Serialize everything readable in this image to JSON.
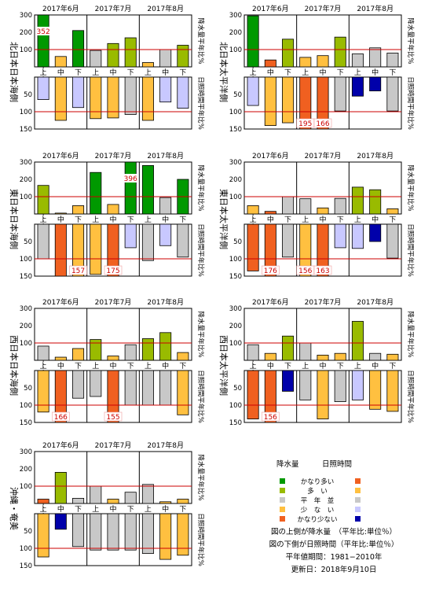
{
  "months": [
    "2017年6月",
    "2017年7月",
    "2017年8月"
  ],
  "dekads": [
    "上",
    "中",
    "下"
  ],
  "colors": {
    "much_above": "#009900",
    "above": "#99bb00",
    "normal": "#c8c8c8",
    "below": "#ffc040",
    "much_below": "#f06020",
    "sun_much_above": "#f06020",
    "sun_above": "#ffc040",
    "sun_below": "#c8c8ff",
    "sun_much_below": "#0000aa"
  },
  "chart_data": [
    {
      "type": "bar",
      "region": "北日本日本海側",
      "precip_axis_label": "降水量平年比%",
      "sunshine_axis_label": "日照時間平年比%",
      "precip": [
        352,
        60,
        210,
        95,
        135,
        168,
        25,
        100,
        125
      ],
      "precip_class": [
        "much_above",
        "below",
        "much_above",
        "normal",
        "above",
        "above",
        "below",
        "normal",
        "above"
      ],
      "precip_labels": [
        "352"
      ],
      "sunshine": [
        65,
        125,
        88,
        120,
        118,
        108,
        125,
        72,
        90
      ],
      "sunshine_class": [
        "sun_below",
        "sun_above",
        "sun_below",
        "sun_above",
        "sun_above",
        "normal",
        "sun_above",
        "sun_below",
        "sun_below"
      ],
      "sunshine_labels": []
    },
    {
      "type": "bar",
      "region": "北日本太平洋側",
      "precip_axis_label": "降水量平年比%",
      "sunshine_axis_label": "日照時間平年比%",
      "precip": [
        295,
        40,
        160,
        55,
        65,
        172,
        75,
        110,
        80
      ],
      "precip_class": [
        "much_above",
        "much_below",
        "above",
        "below",
        "below",
        "above",
        "normal",
        "normal",
        "normal"
      ],
      "precip_labels": [],
      "sunshine": [
        82,
        140,
        132,
        195,
        166,
        98,
        55,
        40,
        98
      ],
      "sunshine_class": [
        "sun_below",
        "sun_above",
        "sun_above",
        "sun_much_above",
        "sun_much_above",
        "normal",
        "sun_much_below",
        "sun_much_below",
        "normal"
      ],
      "sunshine_labels": [
        "195",
        "166"
      ]
    },
    {
      "type": "bar",
      "region": "東日本日本海側",
      "precip_axis_label": "降水量平年比%",
      "sunshine_axis_label": "日照時間平年比%",
      "precip": [
        165,
        5,
        48,
        240,
        55,
        396,
        280,
        95,
        200
      ],
      "precip_class": [
        "above",
        "below",
        "below",
        "much_above",
        "below",
        "much_above",
        "much_above",
        "normal",
        "much_above"
      ],
      "precip_labels": [
        "396"
      ],
      "sunshine": [
        100,
        150,
        157,
        145,
        175,
        68,
        105,
        62,
        95
      ],
      "sunshine_class": [
        "normal",
        "sun_much_above",
        "sun_above",
        "sun_above",
        "sun_much_above",
        "sun_below",
        "normal",
        "sun_below",
        "normal"
      ],
      "sunshine_labels": [
        "157",
        "175"
      ]
    },
    {
      "type": "bar",
      "region": "東日本太平洋側",
      "precip_axis_label": "降水量平年比%",
      "sunshine_axis_label": "日照時間平年比%",
      "precip": [
        48,
        15,
        100,
        88,
        35,
        90,
        155,
        140,
        30
      ],
      "precip_class": [
        "below",
        "much_below",
        "normal",
        "normal",
        "below",
        "normal",
        "above",
        "above",
        "below"
      ],
      "precip_labels": [],
      "sunshine": [
        135,
        176,
        95,
        156,
        163,
        68,
        70,
        50,
        98
      ],
      "sunshine_class": [
        "sun_much_above",
        "sun_much_above",
        "normal",
        "sun_above",
        "sun_much_above",
        "sun_below",
        "sun_below",
        "sun_much_below",
        "normal"
      ],
      "sunshine_labels": [
        "176",
        "156",
        "163"
      ]
    },
    {
      "type": "bar",
      "region": "西日本日本海側",
      "precip_axis_label": "降水量平年比%",
      "sunshine_axis_label": "日照時間平年比%",
      "precip": [
        82,
        18,
        68,
        120,
        25,
        90,
        125,
        160,
        45
      ],
      "precip_class": [
        "normal",
        "below",
        "below",
        "above",
        "below",
        "normal",
        "above",
        "above",
        "below"
      ],
      "precip_labels": [],
      "sunshine": [
        120,
        166,
        80,
        75,
        155,
        100,
        100,
        100,
        128
      ],
      "sunshine_class": [
        "sun_above",
        "sun_much_above",
        "normal",
        "normal",
        "sun_much_above",
        "normal",
        "normal",
        "normal",
        "sun_above"
      ],
      "sunshine_labels": [
        "166",
        "155"
      ]
    },
    {
      "type": "bar",
      "region": "西日本太平洋側",
      "precip_axis_label": "降水量平年比%",
      "sunshine_axis_label": "日照時間平年比%",
      "precip": [
        90,
        40,
        140,
        100,
        30,
        40,
        225,
        40,
        35
      ],
      "precip_class": [
        "normal",
        "below",
        "above",
        "normal",
        "below",
        "below",
        "above",
        "normal",
        "below"
      ],
      "precip_labels": [],
      "sunshine": [
        140,
        156,
        60,
        85,
        140,
        90,
        85,
        112,
        118
      ],
      "sunshine_class": [
        "sun_much_above",
        "sun_much_above",
        "sun_much_below",
        "normal",
        "sun_above",
        "normal",
        "sun_below",
        "sun_above",
        "sun_above"
      ],
      "sunshine_labels": [
        "156"
      ]
    },
    {
      "type": "bar",
      "region": "沖縄・奄美",
      "precip_axis_label": "降水量平年比%",
      "sunshine_axis_label": "日照時間平年比%",
      "precip": [
        25,
        180,
        30,
        100,
        25,
        65,
        110,
        10,
        25
      ],
      "precip_class": [
        "much_below",
        "above",
        "normal",
        "normal",
        "below",
        "normal",
        "normal",
        "below",
        "below"
      ],
      "precip_labels": [],
      "sunshine": [
        125,
        45,
        95,
        105,
        105,
        105,
        115,
        132,
        120
      ],
      "sunshine_class": [
        "sun_above",
        "sun_much_below",
        "normal",
        "normal",
        "normal",
        "normal",
        "normal",
        "sun_above",
        "sun_above"
      ],
      "sunshine_labels": []
    }
  ],
  "legend": {
    "precip_header": "降水量",
    "sun_header": "日照時間",
    "rows": [
      {
        "label": "かなり多い",
        "p": "much_above",
        "s": "sun_much_above"
      },
      {
        "label": "多　い",
        "p": "above",
        "s": "sun_above"
      },
      {
        "label": "平　年　並",
        "p": "normal",
        "s": "normal"
      },
      {
        "label": "少　な　い",
        "p": "below",
        "s": "sun_below"
      },
      {
        "label": "かなり少ない",
        "p": "much_below",
        "s": "sun_much_below"
      }
    ]
  },
  "notes": [
    "図の上側が降水量　（平年比:単位％）",
    "図の下側が日照時間（平年比:単位％）",
    "平年値期間：1981−2010年",
    "更新日：2018年9月10日"
  ]
}
